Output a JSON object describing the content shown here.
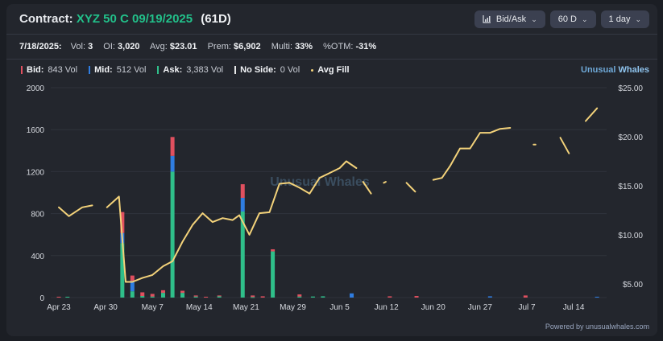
{
  "header": {
    "label": "Contract:",
    "contract": "XYZ 50 C 09/19/2025",
    "days": "(61D)",
    "buttons": {
      "side": "Bid/Ask",
      "range": "60 D",
      "interval": "1 day"
    }
  },
  "stats": {
    "date": "7/18/2025:",
    "vol_label": "Vol:",
    "vol": "3",
    "oi_label": "OI:",
    "oi": "3,020",
    "avg_label": "Avg:",
    "avg": "$23.01",
    "prem_label": "Prem:",
    "prem": "$6,902",
    "multi_label": "Multi:",
    "multi": "33%",
    "otm_label": "%OTM:",
    "otm": "-31%"
  },
  "legend": {
    "bid": {
      "label": "Bid:",
      "value": "843 Vol",
      "color": "#e0505f"
    },
    "mid": {
      "label": "Mid:",
      "value": "512 Vol",
      "color": "#2f7de1"
    },
    "ask": {
      "label": "Ask:",
      "value": "3,383 Vol",
      "color": "#2fbf8a"
    },
    "noside": {
      "label": "No Side:",
      "value": "0 Vol",
      "color": "#e8e8e8"
    },
    "avgfill": {
      "label": "Avg Fill",
      "color": "#f3d27a"
    }
  },
  "brand": {
    "a": "Unusual",
    "b": "Whales"
  },
  "watermark": "Unusual Whales",
  "powered": "Powered by unusualwhales.com",
  "chart_data": {
    "type": "bar",
    "x_tick_labels": [
      "Apr 23",
      "Apr 30",
      "May 7",
      "May 14",
      "May 21",
      "May 29",
      "Jun 5",
      "Jun 12",
      "Jun 20",
      "Jun 27",
      "Jul 7",
      "Jul 14"
    ],
    "x_tick_days": [
      0,
      7,
      14,
      21,
      28,
      35,
      42,
      49,
      56,
      63,
      70,
      77
    ],
    "left_axis": {
      "ticks": [
        "0",
        "400",
        "800",
        "1200",
        "1600",
        "2000"
      ],
      "ylim": [
        0,
        2000
      ]
    },
    "right_axis": {
      "ticks": [
        "$5.00",
        "$10.00",
        "$15.00",
        "$20.00",
        "$25.00"
      ],
      "ylim": [
        3.6,
        25
      ]
    },
    "bars": [
      {
        "day": 0,
        "bid": 8,
        "mid": 0,
        "ask": 0
      },
      {
        "day": 1.3,
        "bid": 0,
        "mid": 0,
        "ask": 8
      },
      {
        "day": 9.5,
        "bid": 200,
        "mid": 95,
        "ask": 520
      },
      {
        "day": 11,
        "bid": 50,
        "mid": 100,
        "ask": 60
      },
      {
        "day": 12.5,
        "bid": 35,
        "mid": 0,
        "ask": 15
      },
      {
        "day": 14,
        "bid": 25,
        "mid": 0,
        "ask": 10
      },
      {
        "day": 15.6,
        "bid": 25,
        "mid": 0,
        "ask": 45
      },
      {
        "day": 17,
        "bid": 180,
        "mid": 150,
        "ask": 1200
      },
      {
        "day": 18.5,
        "bid": 20,
        "mid": 0,
        "ask": 45
      },
      {
        "day": 20.5,
        "bid": 10,
        "mid": 0,
        "ask": 10
      },
      {
        "day": 22,
        "bid": 8,
        "mid": 0,
        "ask": 0
      },
      {
        "day": 24,
        "bid": 8,
        "mid": 0,
        "ask": 12
      },
      {
        "day": 27.5,
        "bid": 130,
        "mid": 130,
        "ask": 820
      },
      {
        "day": 29,
        "bid": 15,
        "mid": 0,
        "ask": 5
      },
      {
        "day": 30.5,
        "bid": 12,
        "mid": 0,
        "ask": 0
      },
      {
        "day": 32,
        "bid": 20,
        "mid": 0,
        "ask": 440
      },
      {
        "day": 36,
        "bid": 20,
        "mid": 0,
        "ask": 10
      },
      {
        "day": 38,
        "bid": 0,
        "mid": 0,
        "ask": 10
      },
      {
        "day": 39.5,
        "bid": 0,
        "mid": 0,
        "ask": 12
      },
      {
        "day": 43.8,
        "bid": 0,
        "mid": 40,
        "ask": 0
      },
      {
        "day": 49.5,
        "bid": 12,
        "mid": 0,
        "ask": 0
      },
      {
        "day": 53.5,
        "bid": 15,
        "mid": 0,
        "ask": 0
      },
      {
        "day": 64.5,
        "bid": 0,
        "mid": 12,
        "ask": 0
      },
      {
        "day": 69.8,
        "bid": 20,
        "mid": 0,
        "ask": 0
      },
      {
        "day": 80.5,
        "bid": 0,
        "mid": 8,
        "ask": 0
      }
    ],
    "avg_fill_segments": [
      [
        [
          0,
          12.8
        ],
        [
          1.5,
          11.9
        ],
        [
          3.5,
          12.8
        ],
        [
          5,
          13.0
        ]
      ],
      [
        [
          7.2,
          12.8
        ],
        [
          9,
          13.9
        ],
        [
          10,
          5.2
        ],
        [
          11,
          5.2
        ],
        [
          12.5,
          5.6
        ],
        [
          14,
          5.9
        ],
        [
          15.6,
          6.8
        ],
        [
          17,
          7.3
        ],
        [
          18.5,
          9.3
        ],
        [
          20,
          11.0
        ],
        [
          21.5,
          12.2
        ],
        [
          23,
          11.3
        ],
        [
          24.5,
          11.7
        ],
        [
          26,
          11.5
        ],
        [
          27,
          12.0
        ],
        [
          28.5,
          10.0
        ],
        [
          30,
          12.2
        ],
        [
          31.5,
          12.3
        ],
        [
          33,
          15.2
        ],
        [
          34.5,
          15.3
        ],
        [
          36,
          14.8
        ],
        [
          37.5,
          14.2
        ],
        [
          39,
          15.8
        ],
        [
          40.5,
          16.3
        ],
        [
          42,
          16.8
        ],
        [
          43,
          17.5
        ],
        [
          44.5,
          16.8
        ]
      ],
      [
        [
          45.5,
          15.4
        ],
        [
          46.7,
          14.2
        ]
      ],
      [
        [
          48.6,
          15.3
        ],
        [
          48.9,
          15.4
        ]
      ],
      [
        [
          52,
          15.3
        ],
        [
          53.3,
          14.4
        ]
      ],
      [
        [
          56,
          15.6
        ],
        [
          57.3,
          15.8
        ],
        [
          58.5,
          17.0
        ],
        [
          60,
          18.8
        ],
        [
          61.5,
          18.8
        ],
        [
          63,
          20.4
        ],
        [
          64.5,
          20.4
        ],
        [
          66,
          20.8
        ],
        [
          67.5,
          20.9
        ]
      ],
      [
        [
          71,
          19.2
        ],
        [
          71.3,
          19.2
        ]
      ],
      [
        [
          75,
          19.9
        ],
        [
          76.3,
          18.3
        ]
      ],
      [
        [
          78.8,
          21.6
        ],
        [
          80.5,
          22.9
        ]
      ]
    ]
  }
}
